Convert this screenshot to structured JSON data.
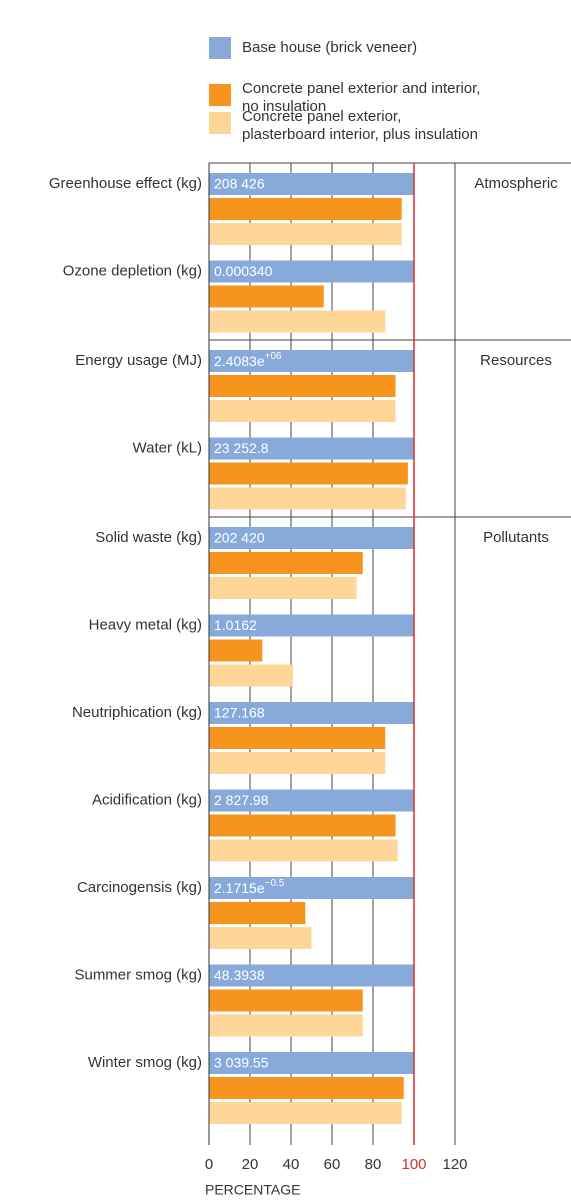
{
  "chart_data": {
    "type": "bar",
    "orientation": "horizontal",
    "x_label": "PERCENTAGE",
    "categories": [
      "Greenhouse effect (kg)",
      "Ozone depletion (kg)",
      "Energy usage (MJ)",
      "Water (kL)",
      "Solid waste (kg)",
      "Heavy metal (kg)",
      "Neutriphication (kg)",
      "Acidification (kg)",
      "Carcinogensis (kg)",
      "Summer smog (kg)",
      "Winter smog (kg)"
    ],
    "sections": [
      {
        "name": "Atmospheric",
        "size": 2
      },
      {
        "name": "Resources",
        "size": 2
      },
      {
        "name": "Pollutants",
        "size": 7
      }
    ],
    "base_labels": [
      "208 426",
      "0.000340",
      {
        "text": "2.4083e",
        "sup": "+06"
      },
      "23 252.8",
      "202 420",
      "1.0162",
      "127.168",
      "2 827.98",
      {
        "text": "2.1715e",
        "sup": "−0.5"
      },
      "48.3938",
      "3 039.55"
    ],
    "series": [
      {
        "name": "Base house (brick veneer)",
        "color": "#87aadb",
        "values": [
          100,
          100,
          100,
          100,
          100,
          100,
          100,
          100,
          100,
          100,
          100
        ]
      },
      {
        "name": "Concrete panel exterior and interior, no insulation",
        "color": "#f7941d",
        "values": [
          94,
          56,
          91,
          97,
          75,
          26,
          86,
          91,
          47,
          75,
          95
        ]
      },
      {
        "name": "Concrete panel exterior, plasterboard interior, plus insulation",
        "color": "#fed698",
        "values": [
          94,
          86,
          91,
          96,
          72,
          41,
          86,
          92,
          50,
          75,
          94
        ]
      }
    ],
    "xlim": [
      0,
      120
    ],
    "xticks": [
      0,
      20,
      40,
      60,
      80,
      100,
      120
    ],
    "grid": true,
    "reference_line": {
      "value": 100,
      "color": "#d62e2e"
    }
  }
}
